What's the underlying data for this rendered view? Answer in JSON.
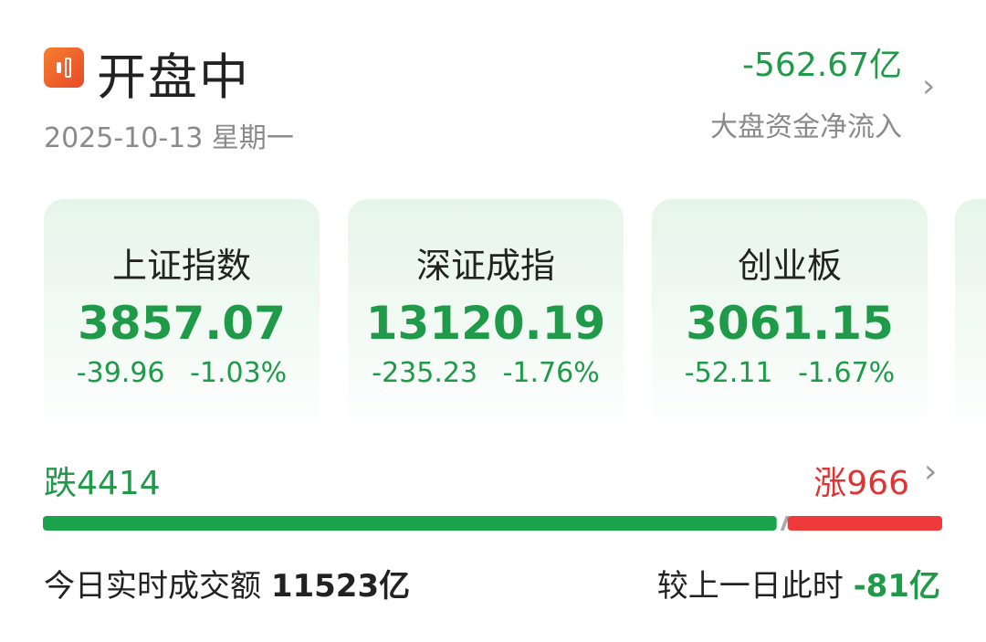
{
  "header": {
    "status": "开盘中",
    "date": "2025-10-13 星期一",
    "net_inflow": "-562.67亿",
    "net_inflow_label": "大盘资金净流入",
    "logo_icon": "candlestick-icon"
  },
  "indices": [
    {
      "name": "上证指数",
      "value": "3857.07",
      "change": "-39.96",
      "pct": "-1.03%"
    },
    {
      "name": "深证成指",
      "value": "13120.19",
      "change": "-235.23",
      "pct": "-1.76%"
    },
    {
      "name": "创业板",
      "value": "3061.15",
      "change": "-52.11",
      "pct": "-1.67%"
    }
  ],
  "breadth": {
    "fall_label": "跌",
    "fall": "4414",
    "rise_label": "涨",
    "rise": "966",
    "fall_fraction": 0.82,
    "colors": {
      "fall": "#1aa34a",
      "rise": "#ee3a3a"
    }
  },
  "turnover": {
    "label": "今日实时成交额",
    "value": "11523亿",
    "compare_label": "较上一日此时",
    "compare_value": "-81亿"
  },
  "colors": {
    "green": "#1f9a49",
    "red": "#e03434"
  }
}
